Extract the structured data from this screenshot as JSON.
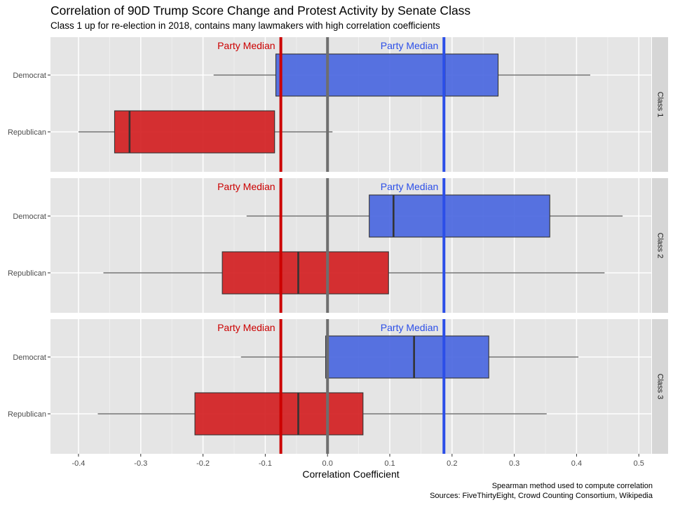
{
  "chart_data": {
    "type": "boxplot",
    "title": "Correlation of 90D Trump Score Change and Protest Activity by Senate Class",
    "subtitle": "Class 1 up for re-election in 2018, contains many lawmakers with high correlation coefficients",
    "xlabel": "Correlation Coefficient",
    "xlim": [
      -0.445,
      0.52
    ],
    "x_ticks": [
      "-0.4",
      "-0.3",
      "-0.2",
      "-0.1",
      "0.0",
      "0.1",
      "0.2",
      "0.3",
      "0.4",
      "0.5"
    ],
    "x_tick_values": [
      -0.4,
      -0.3,
      -0.2,
      -0.1,
      0.0,
      0.1,
      0.2,
      0.3,
      0.4,
      0.5
    ],
    "categories": [
      "Democrat",
      "Republican"
    ],
    "grid": true,
    "colors": {
      "Democrat": "#4a67e0",
      "Republican": "#d21f22",
      "panel_bg": "#e5e5e5",
      "strip_bg": "#d6d6d6",
      "zero_line": "#6e6e6e",
      "dem_median_line": "#2b4ee8",
      "rep_median_line": "#cc0000"
    },
    "reference_lines": {
      "zero": 0.0,
      "democrat_median": 0.187,
      "republican_median": -0.075,
      "label": "Party Median"
    },
    "panels": [
      {
        "label": "Class 1",
        "boxes": [
          {
            "party": "Democrat",
            "whisker_low": -0.183,
            "q1": -0.083,
            "median": 0.188,
            "q3": 0.274,
            "whisker_high": 0.422
          },
          {
            "party": "Republican",
            "whisker_low": -0.4,
            "q1": -0.342,
            "median": -0.318,
            "q3": -0.085,
            "whisker_high": 0.008
          }
        ]
      },
      {
        "label": "Class 2",
        "boxes": [
          {
            "party": "Democrat",
            "whisker_low": -0.13,
            "q1": 0.067,
            "median": 0.106,
            "q3": 0.357,
            "whisker_high": 0.474
          },
          {
            "party": "Republican",
            "whisker_low": -0.36,
            "q1": -0.169,
            "median": -0.047,
            "q3": 0.098,
            "whisker_high": 0.445
          }
        ]
      },
      {
        "label": "Class 3",
        "boxes": [
          {
            "party": "Democrat",
            "whisker_low": -0.139,
            "q1": -0.003,
            "median": 0.139,
            "q3": 0.259,
            "whisker_high": 0.403
          },
          {
            "party": "Republican",
            "whisker_low": -0.369,
            "q1": -0.213,
            "median": -0.047,
            "q3": 0.057,
            "whisker_high": 0.352
          }
        ]
      }
    ],
    "caption": [
      "Spearman method used to compute correlation",
      "Sources: FiveThirtyEight, Crowd Counting Consortium, Wikipedia"
    ]
  }
}
